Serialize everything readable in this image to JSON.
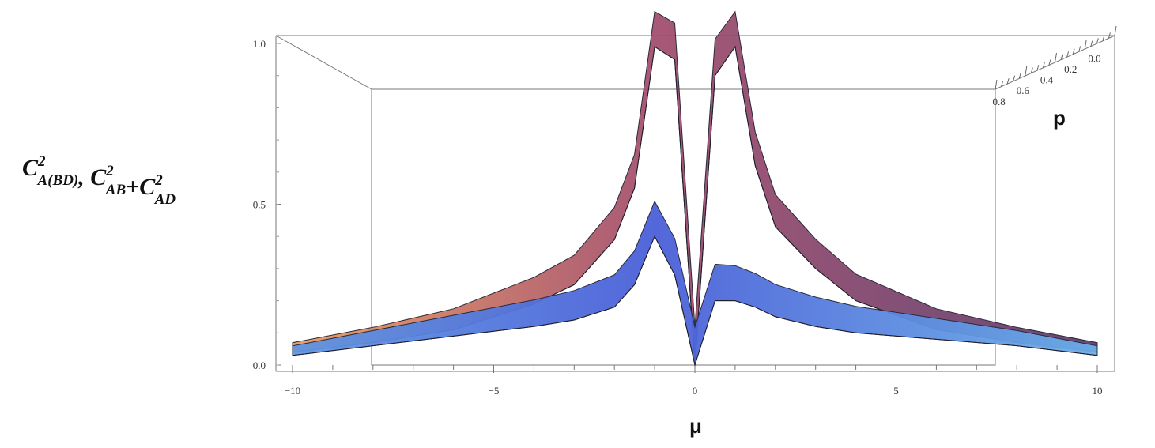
{
  "chart_data": {
    "type": "surface3d",
    "xlabel": "μ",
    "zlabel_parts": [
      {
        "base": "C",
        "sup": "2",
        "sub": "A(BD)"
      },
      {
        "text": ", "
      },
      {
        "base": "C",
        "sup": "2",
        "sub": "AB"
      },
      {
        "text": "+"
      },
      {
        "base": "C",
        "sup": "2",
        "sub": "AD"
      }
    ],
    "depth_label": "p",
    "x_range": [
      -10,
      10
    ],
    "x_ticks": [
      -10,
      -5,
      0,
      5,
      10
    ],
    "z_range": [
      0,
      1
    ],
    "z_ticks": [
      "0.0",
      "0.5",
      "1.0"
    ],
    "depth_range": [
      0,
      1
    ],
    "depth_ticks": [
      "0.0",
      "0.2",
      "0.4",
      "0.6",
      "0.8"
    ],
    "series": [
      {
        "key": "upper",
        "color_left": "#e8965a",
        "color_mid": "#a04a6a",
        "color_right": "#5a3a6a",
        "mu": [
          -10,
          -8,
          -6,
          -4,
          -3,
          -2,
          -1.5,
          -1,
          -0.5,
          0,
          0.5,
          1,
          1.5,
          2,
          3,
          4,
          6,
          8,
          10
        ],
        "z": [
          0.04,
          0.07,
          0.11,
          0.19,
          0.25,
          0.39,
          0.55,
          0.99,
          0.95,
          0.0,
          0.9,
          0.99,
          0.62,
          0.43,
          0.3,
          0.2,
          0.11,
          0.07,
          0.04
        ]
      },
      {
        "key": "lower",
        "color_left": "#5f96e2",
        "color_mid": "#4a5fd8",
        "color_right": "#6aaee8",
        "mu": [
          -10,
          -8,
          -6,
          -4,
          -3,
          -2,
          -1.5,
          -1,
          -0.5,
          0,
          0.5,
          1,
          1.5,
          2,
          3,
          4,
          6,
          8,
          10
        ],
        "z": [
          0.03,
          0.06,
          0.09,
          0.12,
          0.14,
          0.18,
          0.25,
          0.4,
          0.28,
          0.0,
          0.2,
          0.2,
          0.18,
          0.15,
          0.12,
          0.1,
          0.08,
          0.06,
          0.03
        ]
      }
    ]
  }
}
